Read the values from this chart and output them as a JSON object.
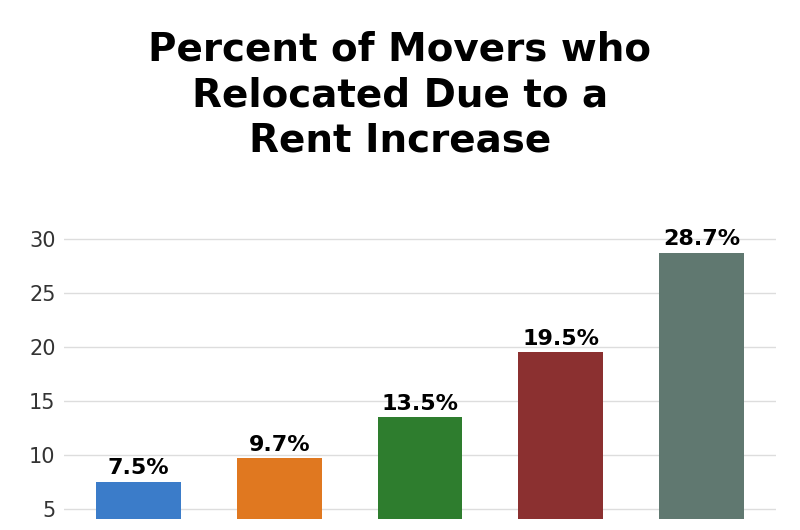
{
  "title": "Percent of Movers who\nRelocated Due to a\nRent Increase",
  "values": [
    7.5,
    9.7,
    13.5,
    19.5,
    28.7
  ],
  "labels": [
    "7.5%",
    "9.7%",
    "13.5%",
    "19.5%",
    "28.7%"
  ],
  "bar_colors": [
    "#3b7cc9",
    "#e07820",
    "#2e7d2e",
    "#8b3030",
    "#607870"
  ],
  "ylim": [
    4,
    31
  ],
  "yticks": [
    5,
    10,
    15,
    20,
    25,
    30
  ],
  "ytick_labels": [
    "5",
    "10",
    "15",
    "20",
    "25",
    "30"
  ],
  "background_color": "#ffffff",
  "title_fontsize": 28,
  "title_fontweight": "bold",
  "label_fontsize": 16,
  "label_fontweight": "bold",
  "tick_fontsize": 15,
  "grid_color": "#dddddd",
  "grid_linewidth": 1.0,
  "bar_width": 0.6
}
